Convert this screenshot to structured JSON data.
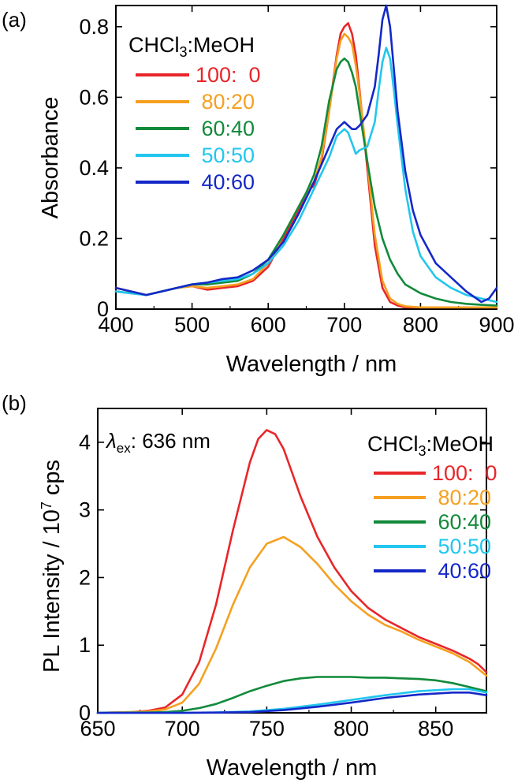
{
  "figure_labels": {
    "panel_a": "(a)",
    "panel_b": "(b)"
  },
  "colors": {
    "100:0": "#e8262a",
    "80:20": "#f5a020",
    "60:40": "#128a3a",
    "50:50": "#22c6ee",
    "40:60": "#1428c8"
  },
  "chart_data": [
    {
      "type": "line",
      "panel": "(a)",
      "title": "",
      "xlabel": "Wavelength / nm",
      "ylabel": "Absorbance",
      "xlim": [
        400,
        900
      ],
      "ylim": [
        0,
        0.86
      ],
      "xticks": [
        400,
        500,
        600,
        700,
        800,
        900
      ],
      "xtick_labels": [
        "400",
        "500",
        "600",
        "700",
        "800",
        "900"
      ],
      "yticks": [
        0,
        0.2,
        0.4,
        0.6,
        0.8
      ],
      "ytick_labels": [
        "0",
        "0.2",
        "0.4",
        "0.6",
        "0.8"
      ],
      "grid": false,
      "legend_title": "CHCl3:MeOH",
      "legend_title_parts": {
        "before": "CHCl",
        "sub": "3",
        "after": ":MeOH"
      },
      "legend_position": "top-left",
      "series": [
        {
          "name": "100:  0",
          "color_key": "100:0",
          "x": [
            400,
            420,
            440,
            460,
            480,
            500,
            520,
            540,
            560,
            580,
            600,
            620,
            640,
            650,
            660,
            670,
            680,
            690,
            695,
            700,
            705,
            710,
            715,
            720,
            730,
            740,
            750,
            760,
            770,
            780,
            800,
            820,
            840,
            860,
            880,
            900
          ],
          "y": [
            0.06,
            0.05,
            0.04,
            0.05,
            0.06,
            0.065,
            0.055,
            0.06,
            0.065,
            0.08,
            0.12,
            0.2,
            0.28,
            0.33,
            0.35,
            0.42,
            0.56,
            0.72,
            0.78,
            0.8,
            0.81,
            0.78,
            0.72,
            0.62,
            0.4,
            0.18,
            0.06,
            0.02,
            0.01,
            0.005,
            0.005,
            0.005,
            0.005,
            0.005,
            0.005,
            0.005
          ]
        },
        {
          "name": " 80:20",
          "color_key": "80:20",
          "x": [
            400,
            420,
            440,
            460,
            480,
            500,
            520,
            540,
            560,
            580,
            600,
            620,
            640,
            650,
            660,
            670,
            680,
            690,
            695,
            700,
            705,
            710,
            715,
            720,
            730,
            740,
            750,
            760,
            770,
            780,
            800,
            820,
            840,
            860,
            880,
            900
          ],
          "y": [
            0.06,
            0.05,
            0.04,
            0.05,
            0.06,
            0.065,
            0.06,
            0.065,
            0.07,
            0.085,
            0.13,
            0.21,
            0.29,
            0.33,
            0.36,
            0.43,
            0.56,
            0.71,
            0.76,
            0.78,
            0.77,
            0.75,
            0.69,
            0.61,
            0.42,
            0.21,
            0.08,
            0.03,
            0.015,
            0.008,
            0.005,
            0.005,
            0.005,
            0.005,
            0.005,
            0.005
          ]
        },
        {
          "name": " 60:40",
          "color_key": "60:40",
          "x": [
            400,
            420,
            440,
            460,
            480,
            500,
            520,
            540,
            560,
            580,
            600,
            620,
            640,
            650,
            660,
            670,
            680,
            690,
            695,
            700,
            705,
            710,
            715,
            720,
            730,
            740,
            750,
            760,
            770,
            780,
            800,
            820,
            840,
            860,
            880,
            900
          ],
          "y": [
            0.05,
            0.045,
            0.04,
            0.05,
            0.06,
            0.07,
            0.07,
            0.075,
            0.08,
            0.1,
            0.14,
            0.21,
            0.29,
            0.33,
            0.38,
            0.46,
            0.59,
            0.68,
            0.7,
            0.71,
            0.7,
            0.67,
            0.63,
            0.56,
            0.42,
            0.29,
            0.2,
            0.14,
            0.1,
            0.07,
            0.045,
            0.03,
            0.02,
            0.015,
            0.012,
            0.01
          ]
        },
        {
          "name": " 50:50",
          "color_key": "50:50",
          "x": [
            400,
            420,
            440,
            460,
            480,
            500,
            520,
            540,
            560,
            580,
            600,
            620,
            640,
            660,
            680,
            690,
            700,
            705,
            710,
            715,
            720,
            730,
            740,
            745,
            750,
            755,
            760,
            765,
            770,
            780,
            790,
            800,
            820,
            840,
            860,
            880,
            900
          ],
          "y": [
            0.05,
            0.045,
            0.04,
            0.05,
            0.06,
            0.07,
            0.075,
            0.08,
            0.085,
            0.1,
            0.13,
            0.18,
            0.25,
            0.34,
            0.43,
            0.49,
            0.51,
            0.5,
            0.47,
            0.44,
            0.45,
            0.46,
            0.53,
            0.62,
            0.7,
            0.74,
            0.71,
            0.62,
            0.52,
            0.34,
            0.22,
            0.15,
            0.09,
            0.06,
            0.04,
            0.03,
            0.02
          ]
        },
        {
          "name": " 40:60",
          "color_key": "40:60",
          "x": [
            400,
            420,
            440,
            460,
            480,
            500,
            520,
            540,
            560,
            580,
            600,
            620,
            640,
            660,
            680,
            690,
            700,
            705,
            710,
            715,
            720,
            730,
            740,
            745,
            750,
            755,
            760,
            765,
            770,
            780,
            790,
            800,
            820,
            840,
            860,
            880,
            890,
            900
          ],
          "y": [
            0.06,
            0.05,
            0.04,
            0.05,
            0.06,
            0.07,
            0.075,
            0.085,
            0.09,
            0.11,
            0.14,
            0.19,
            0.27,
            0.36,
            0.46,
            0.51,
            0.53,
            0.52,
            0.51,
            0.51,
            0.52,
            0.55,
            0.63,
            0.72,
            0.82,
            0.86,
            0.8,
            0.68,
            0.56,
            0.39,
            0.28,
            0.21,
            0.13,
            0.09,
            0.05,
            0.02,
            0.03,
            0.06
          ]
        }
      ]
    },
    {
      "type": "line",
      "panel": "(b)",
      "title": "",
      "xlabel": "Wavelength / nm",
      "ylabel_parts": {
        "before": "PL Intensity / 10",
        "sup": "7",
        "after": " cps"
      },
      "ylabel": "PL Intensity / 10^7 cps",
      "xlim": [
        650,
        880
      ],
      "ylim": [
        0,
        4.5
      ],
      "xticks": [
        650,
        700,
        750,
        800,
        850
      ],
      "xtick_labels": [
        "650",
        "700",
        "750",
        "800",
        "850"
      ],
      "yticks": [
        0,
        1,
        2,
        3,
        4
      ],
      "ytick_labels": [
        "0",
        "1",
        "2",
        "3",
        "4"
      ],
      "grid": false,
      "annotation_parts": {
        "symbol": "λ",
        "sub": "ex",
        "after": ": 636 nm"
      },
      "annotation": "λex: 636 nm",
      "legend_title": "CHCl3:MeOH",
      "legend_title_parts": {
        "before": "CHCl",
        "sub": "3",
        "after": ":MeOH"
      },
      "legend_position": "top-right",
      "series": [
        {
          "name": "100:  0",
          "color_key": "100:0",
          "x": [
            650,
            670,
            680,
            690,
            700,
            710,
            720,
            730,
            740,
            745,
            750,
            755,
            760,
            770,
            780,
            790,
            800,
            810,
            820,
            830,
            840,
            850,
            860,
            870,
            875,
            880
          ],
          "y": [
            0,
            0.01,
            0.03,
            0.08,
            0.27,
            0.75,
            1.6,
            2.7,
            3.7,
            4.05,
            4.18,
            4.12,
            3.9,
            3.2,
            2.6,
            2.15,
            1.8,
            1.55,
            1.38,
            1.25,
            1.12,
            1.02,
            0.92,
            0.8,
            0.72,
            0.6
          ]
        },
        {
          "name": " 80:20",
          "color_key": "80:20",
          "x": [
            650,
            670,
            680,
            690,
            700,
            710,
            720,
            730,
            740,
            750,
            760,
            770,
            780,
            790,
            800,
            810,
            820,
            830,
            840,
            850,
            860,
            870,
            880
          ],
          "y": [
            0,
            0.01,
            0.02,
            0.05,
            0.15,
            0.43,
            0.95,
            1.6,
            2.15,
            2.5,
            2.6,
            2.45,
            2.2,
            1.9,
            1.65,
            1.45,
            1.3,
            1.2,
            1.08,
            0.98,
            0.88,
            0.75,
            0.55
          ]
        },
        {
          "name": " 60:40",
          "color_key": "60:40",
          "x": [
            650,
            680,
            690,
            700,
            710,
            720,
            730,
            740,
            750,
            760,
            770,
            780,
            790,
            800,
            810,
            820,
            830,
            840,
            850,
            860,
            870,
            880
          ],
          "y": [
            0,
            0.005,
            0.01,
            0.03,
            0.07,
            0.13,
            0.22,
            0.32,
            0.4,
            0.47,
            0.51,
            0.53,
            0.53,
            0.53,
            0.52,
            0.52,
            0.51,
            0.5,
            0.48,
            0.44,
            0.38,
            0.32
          ]
        },
        {
          "name": " 50:50",
          "color_key": "50:50",
          "x": [
            650,
            700,
            720,
            740,
            760,
            780,
            800,
            820,
            840,
            860,
            870,
            880
          ],
          "y": [
            0,
            0,
            0.005,
            0.02,
            0.06,
            0.12,
            0.19,
            0.26,
            0.32,
            0.35,
            0.35,
            0.3
          ]
        },
        {
          "name": " 40:60",
          "color_key": "40:60",
          "x": [
            650,
            700,
            720,
            740,
            760,
            780,
            800,
            820,
            840,
            860,
            870,
            880
          ],
          "y": [
            0,
            0,
            0.003,
            0.01,
            0.04,
            0.09,
            0.15,
            0.22,
            0.27,
            0.3,
            0.3,
            0.26
          ]
        }
      ]
    }
  ]
}
